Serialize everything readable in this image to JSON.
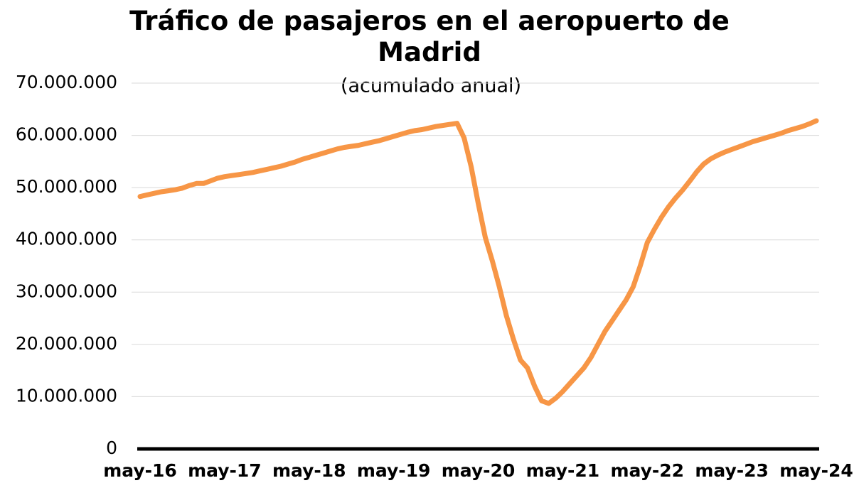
{
  "chart_data": {
    "type": "line",
    "title": "Tráfico de pasajeros en el aeropuerto de Madrid",
    "subtitle": "(acumulado anual)",
    "categories": [
      "may-16",
      null,
      null,
      null,
      null,
      null,
      null,
      null,
      null,
      null,
      null,
      null,
      "may-17",
      null,
      null,
      null,
      null,
      null,
      null,
      null,
      null,
      null,
      null,
      null,
      "may-18",
      null,
      null,
      null,
      null,
      null,
      null,
      null,
      null,
      null,
      null,
      null,
      "may-19",
      null,
      null,
      null,
      null,
      null,
      null,
      null,
      null,
      null,
      null,
      null,
      "may-20",
      null,
      null,
      null,
      null,
      null,
      null,
      null,
      null,
      null,
      null,
      null,
      "may-21",
      null,
      null,
      null,
      null,
      null,
      null,
      null,
      null,
      null,
      null,
      null,
      "may-22",
      null,
      null,
      null,
      null,
      null,
      null,
      null,
      null,
      null,
      null,
      null,
      "may-23",
      null,
      null,
      null,
      null,
      null,
      null,
      null,
      null,
      null,
      null,
      null,
      "may-24"
    ],
    "series": [
      {
        "color": "#f79646",
        "values": [
          48300000,
          48600000,
          48900000,
          49200000,
          49400000,
          49600000,
          49900000,
          50400000,
          50800000,
          50800000,
          51300000,
          51800000,
          52100000,
          52300000,
          52500000,
          52700000,
          52900000,
          53200000,
          53500000,
          53800000,
          54100000,
          54500000,
          54900000,
          55400000,
          55800000,
          56200000,
          56600000,
          57000000,
          57400000,
          57700000,
          57900000,
          58100000,
          58400000,
          58700000,
          59000000,
          59400000,
          59800000,
          60200000,
          60600000,
          60900000,
          61100000,
          61400000,
          61700000,
          61900000,
          62100000,
          62300000,
          59500000,
          54000000,
          47000000,
          40500000,
          36000000,
          31000000,
          25500000,
          21000000,
          17000000,
          15500000,
          12000000,
          9200000,
          8700000,
          9700000,
          11000000,
          12500000,
          14000000,
          15500000,
          17500000,
          20000000,
          22500000,
          24500000,
          26500000,
          28500000,
          31000000,
          35000000,
          39500000,
          42000000,
          44300000,
          46300000,
          48000000,
          49500000,
          51200000,
          53000000,
          54500000,
          55500000,
          56200000,
          56800000,
          57300000,
          57800000,
          58300000,
          58800000,
          59200000,
          59600000,
          60000000,
          60400000,
          60900000,
          61300000,
          61700000,
          62200000,
          62800000
        ]
      }
    ],
    "ylim": [
      0,
      70000000
    ],
    "yticks": [
      0,
      {
        "value": 10000000,
        "label": "10.000.000"
      },
      {
        "value": 20000000,
        "label": "20.000.000"
      },
      {
        "value": 30000000,
        "label": "30.000.000"
      },
      {
        "value": 40000000,
        "label": "40.000.000"
      },
      {
        "value": 50000000,
        "label": "50.000.000"
      },
      {
        "value": 60000000,
        "label": "60.000.000"
      },
      {
        "value": 70000000,
        "label": "70.000.000"
      }
    ],
    "grid": true
  }
}
